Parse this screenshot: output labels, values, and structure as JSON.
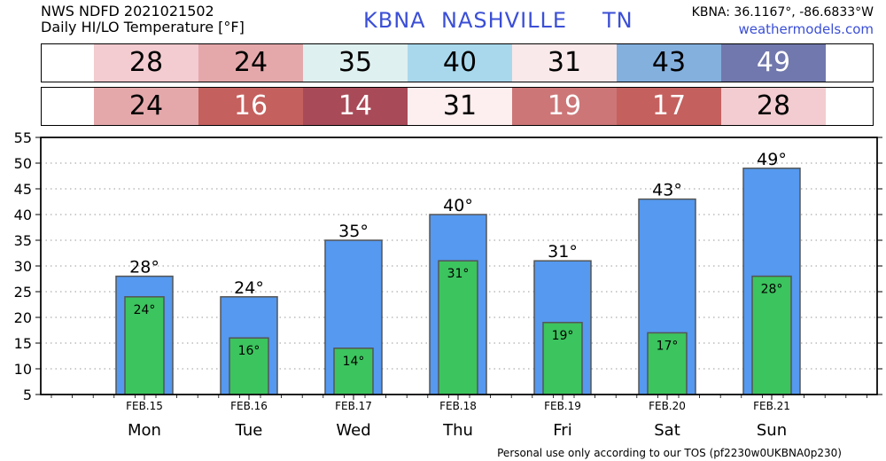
{
  "header": {
    "line1": "NWS NDFD 2021021502",
    "line2": "Daily HI/LO Temperature [°F]",
    "station_id": "KBNA",
    "city": "NASHVILLE",
    "state": "TN",
    "coords": "KBNA: 36.1167°, -86.6833°W",
    "site": "weathermodels.com"
  },
  "hi_row": [
    {
      "value": "28",
      "bg": "#f2ccd0",
      "fg": "#000000"
    },
    {
      "value": "24",
      "bg": "#e4a8ab",
      "fg": "#000000"
    },
    {
      "value": "35",
      "bg": "#dff0f0",
      "fg": "#000000"
    },
    {
      "value": "40",
      "bg": "#a9d8ec",
      "fg": "#000000"
    },
    {
      "value": "31",
      "bg": "#fae9ea",
      "fg": "#000000"
    },
    {
      "value": "43",
      "bg": "#84b0de",
      "fg": "#000000"
    },
    {
      "value": "49",
      "bg": "#7178ad",
      "fg": "#ffffff"
    }
  ],
  "lo_row": [
    {
      "value": "24",
      "bg": "#e4a8ab",
      "fg": "#000000"
    },
    {
      "value": "16",
      "bg": "#c4605e",
      "fg": "#ffffff"
    },
    {
      "value": "14",
      "bg": "#a84a58",
      "fg": "#ffffff"
    },
    {
      "value": "31",
      "bg": "#fdeeef",
      "fg": "#000000"
    },
    {
      "value": "19",
      "bg": "#cc7677",
      "fg": "#ffffff"
    },
    {
      "value": "17",
      "bg": "#c4605e",
      "fg": "#ffffff"
    },
    {
      "value": "28",
      "bg": "#f2ccd0",
      "fg": "#000000"
    }
  ],
  "chart_data": {
    "type": "bar",
    "categories": [
      "FEB.15",
      "FEB.16",
      "FEB.17",
      "FEB.18",
      "FEB.19",
      "FEB.20",
      "FEB.21"
    ],
    "day_labels": [
      "Mon",
      "Tue",
      "Wed",
      "Thu",
      "Fri",
      "Sat",
      "Sun"
    ],
    "series": [
      {
        "values": [
          28,
          24,
          35,
          40,
          31,
          43,
          49
        ],
        "color": "#5599f0",
        "value_labels": [
          "28°",
          "24°",
          "35°",
          "40°",
          "31°",
          "43°",
          "49°"
        ]
      },
      {
        "values": [
          24,
          16,
          14,
          31,
          19,
          17,
          28
        ],
        "color": "#3cc45e",
        "value_labels": [
          "24°",
          "16°",
          "14°",
          "31°",
          "19°",
          "17°",
          "28°"
        ]
      }
    ],
    "ylim": [
      5,
      55
    ],
    "yticks": [
      "5",
      "10",
      "15",
      "20",
      "25",
      "30",
      "35",
      "40",
      "45",
      "50",
      "55"
    ],
    "grid": true
  },
  "footer": "Personal use only according to our TOS (pf2230w0UKBNA0p230)"
}
